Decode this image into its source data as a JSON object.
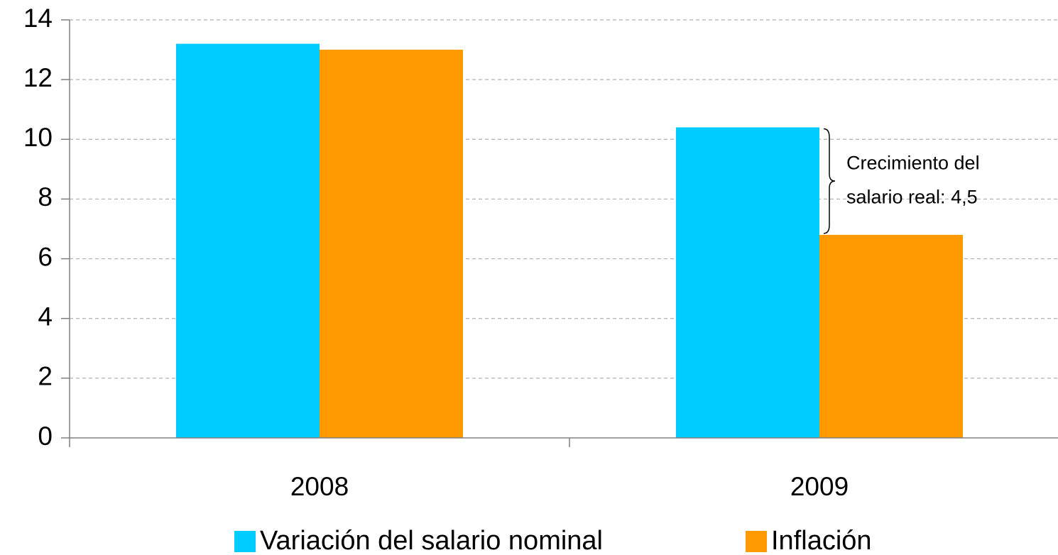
{
  "chart_data": {
    "type": "bar",
    "categories": [
      "2008",
      "2009"
    ],
    "series": [
      {
        "name": "Variación del salario nominal",
        "color": "#00ccff",
        "values": [
          13.2,
          10.4
        ]
      },
      {
        "name": "Inflación",
        "color": "#ff9900",
        "values": [
          13.0,
          6.8
        ]
      }
    ],
    "ylim": [
      0,
      14
    ],
    "yticks": [
      0,
      2,
      4,
      6,
      8,
      10,
      12,
      14
    ],
    "grid": true,
    "legend": "bottom",
    "annotation": [
      "Crecimiento del",
      "salario real: 4,5"
    ]
  }
}
